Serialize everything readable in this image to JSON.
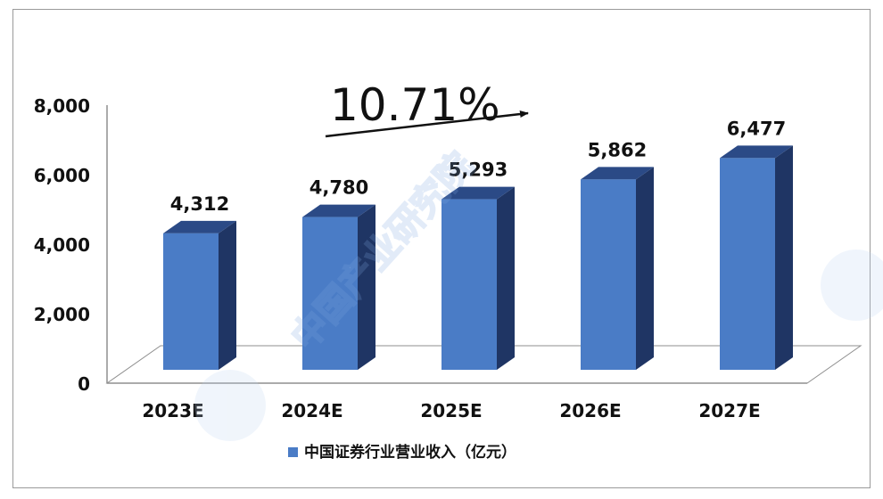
{
  "chart_data": {
    "type": "bar",
    "categories": [
      "2023E",
      "2024E",
      "2025E",
      "2026E",
      "2027E"
    ],
    "series": [
      {
        "name": "中国证券行业营业收入（亿元）",
        "values": [
          4312,
          4780,
          5293,
          5862,
          6477
        ],
        "value_labels": [
          "4,312",
          "4,780",
          "5,293",
          "5,862",
          "6,477"
        ]
      }
    ],
    "y_ticks": [
      "0",
      "2,000",
      "4,000",
      "6,000",
      "8,000"
    ],
    "ylim": [
      0,
      8000
    ],
    "annotation": "10.71%",
    "legend_position": "bottom",
    "grid": false,
    "colors": {
      "bar_front": "#4a7cc6",
      "bar_side": "#1f3564",
      "bar_top": "#2b4a86"
    },
    "watermark": "中国产业研究院"
  }
}
